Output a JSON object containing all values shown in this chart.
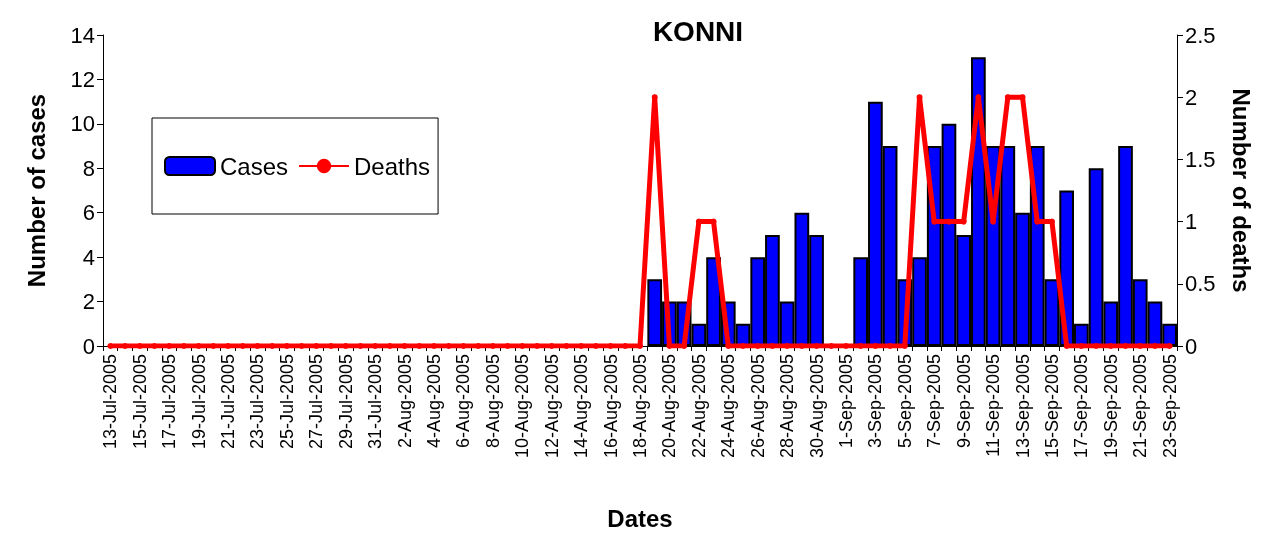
{
  "chart_data": {
    "type": "bar",
    "title": "KONNI",
    "xlabel": "Dates",
    "ylabel": "Number of cases",
    "y2label": "Number of deaths",
    "categories": [
      "13-Jul-2005",
      null,
      "15-Jul-2005",
      null,
      "17-Jul-2005",
      null,
      "19-Jul-2005",
      null,
      "21-Jul-2005",
      null,
      "23-Jul-2005",
      null,
      "25-Jul-2005",
      null,
      "27-Jul-2005",
      null,
      "29-Jul-2005",
      null,
      "31-Jul-2005",
      null,
      "2-Aug-2005",
      null,
      "4-Aug-2005",
      null,
      "6-Aug-2005",
      null,
      "8-Aug-2005",
      null,
      "10-Aug-2005",
      null,
      "12-Aug-2005",
      null,
      "14-Aug-2005",
      null,
      "16-Aug-2005",
      null,
      "18-Aug-2005",
      null,
      "20-Aug-2005",
      null,
      "22-Aug-2005",
      null,
      "24-Aug-2005",
      null,
      "26-Aug-2005",
      null,
      "28-Aug-2005",
      null,
      "30-Aug-2005",
      null,
      "1-Sep-2005",
      null,
      "3-Sep-2005",
      null,
      "5-Sep-2005",
      null,
      "7-Sep-2005",
      null,
      "9-Sep-2005",
      null,
      "11-Sep-2005",
      null,
      "13-Sep-2005",
      null,
      "15-Sep-2005",
      null,
      "17-Sep-2005",
      null,
      "19-Sep-2005",
      null,
      "21-Sep-2005",
      null,
      "23-Sep-2005"
    ],
    "series": [
      {
        "name": "Cases",
        "color": "#0000ff",
        "values": [
          0,
          0,
          0,
          0,
          0,
          0,
          0,
          0,
          0,
          0,
          0,
          0,
          0,
          0,
          0,
          0,
          0,
          0,
          0,
          0,
          0,
          0,
          0,
          0,
          0,
          0,
          0,
          0,
          0,
          0,
          0,
          0,
          0,
          0,
          0,
          0,
          0,
          3,
          2,
          2,
          1,
          4,
          2,
          1,
          4,
          5,
          2,
          6,
          5,
          0,
          0,
          4,
          11,
          9,
          3,
          4,
          9,
          10,
          5,
          13,
          9,
          9,
          6,
          9,
          3,
          7,
          1,
          8,
          2,
          9,
          3,
          2,
          1
        ]
      },
      {
        "name": "Deaths",
        "type": "line",
        "axis": "y2",
        "color": "#ff0000",
        "values": [
          0,
          0,
          0,
          0,
          0,
          0,
          0,
          0,
          0,
          0,
          0,
          0,
          0,
          0,
          0,
          0,
          0,
          0,
          0,
          0,
          0,
          0,
          0,
          0,
          0,
          0,
          0,
          0,
          0,
          0,
          0,
          0,
          0,
          0,
          0,
          0,
          0,
          2,
          0,
          0,
          1,
          1,
          0,
          0,
          0,
          0,
          0,
          0,
          0,
          0,
          0,
          0,
          0,
          0,
          0,
          2,
          1,
          1,
          1,
          2,
          1,
          2,
          2,
          1,
          1,
          0,
          0,
          0,
          0,
          0,
          0,
          0,
          0
        ]
      }
    ],
    "ylim": [
      0,
      14
    ],
    "yticks": [
      0,
      2,
      4,
      6,
      8,
      10,
      12,
      14
    ],
    "y2lim": [
      0,
      2.5
    ],
    "y2ticks": [
      0,
      0.5,
      1,
      1.5,
      2,
      2.5
    ],
    "grid": false,
    "legend": "top left",
    "marker": "circle",
    "line_style": "solid"
  }
}
